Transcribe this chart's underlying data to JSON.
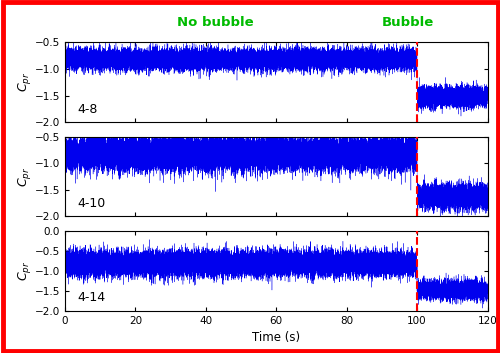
{
  "title_no_bubble": "No bubble",
  "title_bubble": "Bubble",
  "title_color": "#00BB00",
  "panels": [
    {
      "label": "4-8",
      "mean_before": -0.82,
      "std_before": 0.1,
      "mean_after": -1.52,
      "std_after": 0.1,
      "ylim": [
        -2.0,
        -0.5
      ],
      "yticks": [
        -2.0,
        -1.5,
        -1.0,
        -0.5
      ]
    },
    {
      "label": "4-10",
      "mean_before": -0.82,
      "std_before": 0.16,
      "mean_after": -1.62,
      "std_after": 0.12,
      "ylim": [
        -2.0,
        -0.5
      ],
      "yticks": [
        -2.0,
        -1.5,
        -1.0,
        -0.5
      ]
    },
    {
      "label": "4-14",
      "mean_before": -0.82,
      "std_before": 0.16,
      "mean_after": -1.48,
      "std_after": 0.12,
      "ylim": [
        -2.0,
        0.0
      ],
      "yticks": [
        -2.0,
        -1.5,
        -1.0,
        -0.5,
        0.0
      ]
    }
  ],
  "t_total": 120,
  "t_switch": 100,
  "dt": 0.005,
  "xlim": [
    0,
    120
  ],
  "xticks": [
    0,
    20,
    40,
    60,
    80,
    100,
    120
  ],
  "line_color": "#0000EE",
  "dashed_line_color": "#FF0000",
  "outer_border_color": "#FF0000",
  "xlabel": "Time (s)",
  "background": "#FFFFFF",
  "seed": 42
}
